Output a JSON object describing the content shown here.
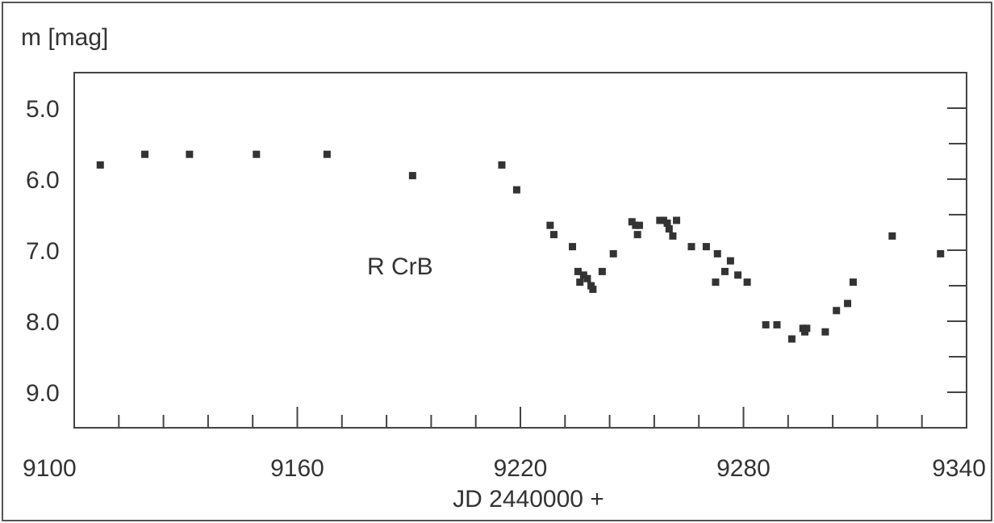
{
  "chart_data": {
    "type": "scatter",
    "ylabel": "m [mag]",
    "xlabel": "JD 2440000 +",
    "annotation": "R CrB",
    "xlim": [
      9100,
      9340
    ],
    "ylim": [
      4.5,
      9.5
    ],
    "y_inverted": true,
    "x_ticks": [
      9100,
      9160,
      9220,
      9280,
      9340
    ],
    "x_tick_labels": [
      "9100",
      "9160",
      "9220",
      "9280",
      "9340"
    ],
    "x_minor_step": 12,
    "y_ticks": [
      5.0,
      6.0,
      7.0,
      8.0,
      9.0
    ],
    "y_tick_labels": [
      "5.0",
      "6.0",
      "7.0",
      "8.0",
      "9.0"
    ],
    "y_minor_step": 0.5,
    "grid": false,
    "marker_color": "#333333",
    "points": [
      [
        9107,
        5.8
      ],
      [
        9119,
        5.65
      ],
      [
        9131,
        5.65
      ],
      [
        9149,
        5.65
      ],
      [
        9168,
        5.65
      ],
      [
        9191,
        5.95
      ],
      [
        9215,
        5.8
      ],
      [
        9219,
        6.15
      ],
      [
        9228,
        6.65
      ],
      [
        9229,
        6.78
      ],
      [
        9234,
        6.95
      ],
      [
        9235.5,
        7.3
      ],
      [
        9236,
        7.45
      ],
      [
        9237,
        7.35
      ],
      [
        9238,
        7.4
      ],
      [
        9239,
        7.5
      ],
      [
        9239.5,
        7.55
      ],
      [
        9242,
        7.3
      ],
      [
        9245,
        7.05
      ],
      [
        9250,
        6.6
      ],
      [
        9251,
        6.65
      ],
      [
        9251.5,
        6.78
      ],
      [
        9252,
        6.65
      ],
      [
        9257.5,
        6.58
      ],
      [
        9258.5,
        6.58
      ],
      [
        9259.5,
        6.62
      ],
      [
        9260,
        6.7
      ],
      [
        9261,
        6.8
      ],
      [
        9262,
        6.58
      ],
      [
        9266,
        6.95
      ],
      [
        9270,
        6.95
      ],
      [
        9272.5,
        7.45
      ],
      [
        9273,
        7.05
      ],
      [
        9275,
        7.3
      ],
      [
        9276.5,
        7.15
      ],
      [
        9278.5,
        7.35
      ],
      [
        9281,
        7.45
      ],
      [
        9286,
        8.05
      ],
      [
        9289,
        8.05
      ],
      [
        9293,
        8.25
      ],
      [
        9296,
        8.1
      ],
      [
        9296.5,
        8.15
      ],
      [
        9297,
        8.1
      ],
      [
        9302,
        8.15
      ],
      [
        9305,
        7.85
      ],
      [
        9308,
        7.75
      ],
      [
        9309.5,
        7.45
      ],
      [
        9320,
        6.8
      ],
      [
        9333,
        7.05
      ]
    ]
  }
}
